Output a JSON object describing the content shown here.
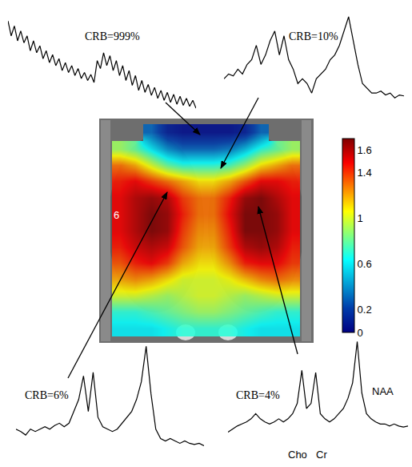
{
  "chart_data": [
    {
      "type": "heatmap",
      "z": [
        [
          null,
          null,
          0.3,
          0.1,
          0.05,
          0.05,
          0.05,
          0.05,
          0.1,
          0.3,
          null,
          null
        ],
        [
          0.9,
          0.8,
          0.6,
          0.4,
          0.3,
          0.3,
          0.3,
          0.35,
          0.5,
          0.7,
          0.8,
          0.9
        ],
        [
          1.3,
          1.2,
          1.0,
          0.8,
          0.7,
          0.7,
          0.7,
          0.75,
          0.9,
          1.1,
          1.2,
          1.3
        ],
        [
          1.45,
          1.5,
          1.4,
          1.3,
          1.2,
          1.1,
          1.1,
          1.2,
          1.35,
          1.5,
          1.5,
          1.45
        ],
        [
          1.5,
          1.6,
          1.65,
          1.6,
          1.4,
          1.3,
          1.3,
          1.45,
          1.65,
          1.7,
          1.6,
          1.5
        ],
        [
          1.5,
          1.6,
          1.7,
          1.65,
          1.45,
          1.3,
          1.3,
          1.5,
          1.7,
          1.7,
          1.65,
          1.5
        ],
        [
          1.5,
          1.6,
          1.7,
          1.65,
          1.4,
          1.25,
          1.25,
          1.45,
          1.7,
          1.7,
          1.65,
          1.5
        ],
        [
          1.45,
          1.55,
          1.6,
          1.55,
          1.35,
          1.2,
          1.2,
          1.4,
          1.6,
          1.65,
          1.6,
          1.45
        ],
        [
          1.35,
          1.45,
          1.5,
          1.4,
          1.2,
          1.1,
          1.1,
          1.25,
          1.45,
          1.5,
          1.5,
          1.4
        ],
        [
          1.2,
          1.25,
          1.2,
          1.1,
          1.0,
          1.0,
          1.0,
          1.05,
          1.15,
          1.25,
          1.3,
          1.25
        ],
        [
          1.0,
          1.0,
          0.95,
          0.9,
          0.95,
          1.0,
          1.0,
          0.95,
          0.9,
          0.95,
          1.0,
          1.0
        ],
        [
          0.7,
          0.7,
          0.75,
          0.8,
          0.85,
          0.9,
          0.9,
          0.85,
          0.8,
          0.75,
          0.7,
          0.7
        ],
        [
          0.6,
          0.6,
          0.6,
          0.65,
          0.7,
          0.7,
          0.7,
          0.7,
          0.65,
          0.6,
          0.6,
          0.6
        ]
      ],
      "colorbar": {
        "range": [
          0,
          1.7
        ],
        "ticks": [
          0,
          0.2,
          0.6,
          1,
          1.4,
          1.6
        ]
      },
      "annotations": [
        "6"
      ],
      "tick_labels": false
    },
    {
      "type": "line",
      "title": "CRB=999%",
      "color": "#000000",
      "tick_labels": false,
      "xlim": [
        0,
        59
      ],
      "ylim": [
        0,
        1.05
      ],
      "values": [
        1.0,
        0.85,
        0.95,
        0.8,
        0.9,
        0.78,
        0.85,
        0.7,
        0.8,
        0.68,
        0.75,
        0.62,
        0.7,
        0.58,
        0.66,
        0.55,
        0.62,
        0.5,
        0.58,
        0.48,
        0.55,
        0.45,
        0.52,
        0.42,
        0.48,
        0.4,
        0.46,
        0.38,
        0.6,
        0.52,
        0.68,
        0.55,
        0.65,
        0.5,
        0.6,
        0.45,
        0.55,
        0.4,
        0.5,
        0.35,
        0.45,
        0.3,
        0.4,
        0.28,
        0.36,
        0.25,
        0.33,
        0.22,
        0.3,
        0.2,
        0.28,
        0.18,
        0.26,
        0.16,
        0.24,
        0.15,
        0.22,
        0.14,
        0.2,
        0.12
      ]
    },
    {
      "type": "line",
      "title": "CRB=10%",
      "color": "#000000",
      "tick_labels": false,
      "xlim": [
        0,
        39
      ],
      "ylim": [
        0,
        1.05
      ],
      "values": [
        0.35,
        0.4,
        0.38,
        0.45,
        0.4,
        0.5,
        0.55,
        0.7,
        0.5,
        0.6,
        0.75,
        0.85,
        0.6,
        0.8,
        0.55,
        0.45,
        0.3,
        0.35,
        0.3,
        0.2,
        0.35,
        0.4,
        0.45,
        0.55,
        0.6,
        0.7,
        0.85,
        1.0,
        0.75,
        0.5,
        0.3,
        0.25,
        0.2,
        0.2,
        0.22,
        0.18,
        0.2,
        0.15,
        0.18,
        0.17
      ]
    },
    {
      "type": "line",
      "title": "CRB=6%",
      "color": "#000000",
      "tick_labels": false,
      "xlim": [
        0,
        39
      ],
      "ylim": [
        0,
        1.05
      ],
      "values": [
        0.3,
        0.28,
        0.25,
        0.3,
        0.28,
        0.3,
        0.32,
        0.3,
        0.33,
        0.35,
        0.32,
        0.35,
        0.45,
        0.55,
        0.75,
        0.45,
        0.78,
        0.4,
        0.32,
        0.3,
        0.28,
        0.3,
        0.35,
        0.4,
        0.45,
        0.55,
        0.7,
        1.0,
        0.6,
        0.3,
        0.22,
        0.2,
        0.22,
        0.2,
        0.18,
        0.2,
        0.18,
        0.17,
        0.18,
        0.16
      ]
    },
    {
      "type": "line",
      "title": "CRB=4%",
      "color": "#000000",
      "tick_labels": false,
      "xlim": [
        0,
        39
      ],
      "ylim": [
        0,
        1.05
      ],
      "annotations": [
        "NAA",
        "Cho",
        "Cr"
      ],
      "values": [
        0.12,
        0.15,
        0.18,
        0.2,
        0.22,
        0.25,
        0.3,
        0.25,
        0.22,
        0.2,
        0.22,
        0.25,
        0.22,
        0.25,
        0.3,
        0.4,
        0.72,
        0.35,
        0.4,
        0.7,
        0.3,
        0.25,
        0.22,
        0.25,
        0.3,
        0.35,
        0.45,
        0.6,
        1.0,
        0.5,
        0.3,
        0.25,
        0.22,
        0.2,
        0.2,
        0.18,
        0.2,
        0.18,
        0.17,
        0.18
      ]
    }
  ]
}
